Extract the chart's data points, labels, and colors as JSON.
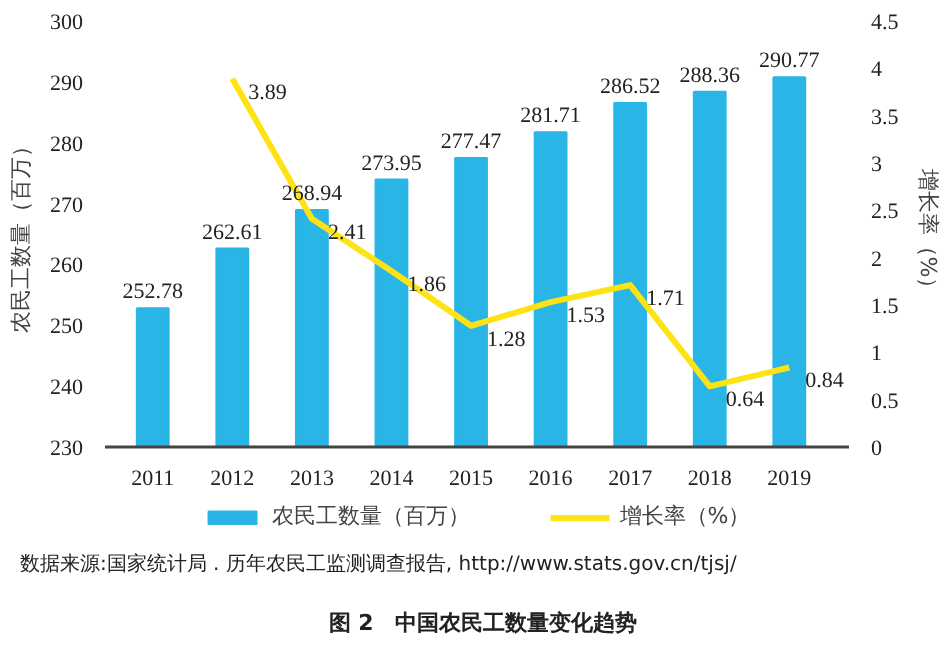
{
  "chart_data": {
    "type": "bar",
    "title": "图 2　中国农民工数量变化趋势",
    "annotations": [
      "数据来源:国家统计局 . 历年农民工监测调查报告, http://www.stats.gov.cn/tjsj/"
    ],
    "categories": [
      "2011",
      "2012",
      "2013",
      "2014",
      "2015",
      "2016",
      "2017",
      "2018",
      "2019"
    ],
    "ylabel": "农民工数量（百万）",
    "y2label": "增长率（%）",
    "ylim": [
      230,
      300
    ],
    "yticks": [
      230,
      240,
      250,
      260,
      270,
      280,
      290,
      300
    ],
    "y2lim": [
      0,
      4.5
    ],
    "y2ticks": [
      0,
      0.5,
      1,
      1.5,
      2,
      2.5,
      3,
      3.5,
      4,
      4.5
    ],
    "series": [
      {
        "name": "农民工数量（百万）",
        "color": "#29b5e6",
        "values": [
          252.78,
          262.61,
          268.94,
          273.95,
          277.47,
          281.71,
          286.52,
          288.36,
          290.77
        ]
      },
      {
        "name": "增长率（%）",
        "type": "line",
        "axis": "y2",
        "color": "#fde314",
        "values": [
          null,
          3.89,
          2.41,
          1.86,
          1.28,
          1.53,
          1.71,
          0.64,
          0.84
        ]
      }
    ],
    "data_labels": true,
    "grid": false,
    "legend": "bottom"
  }
}
